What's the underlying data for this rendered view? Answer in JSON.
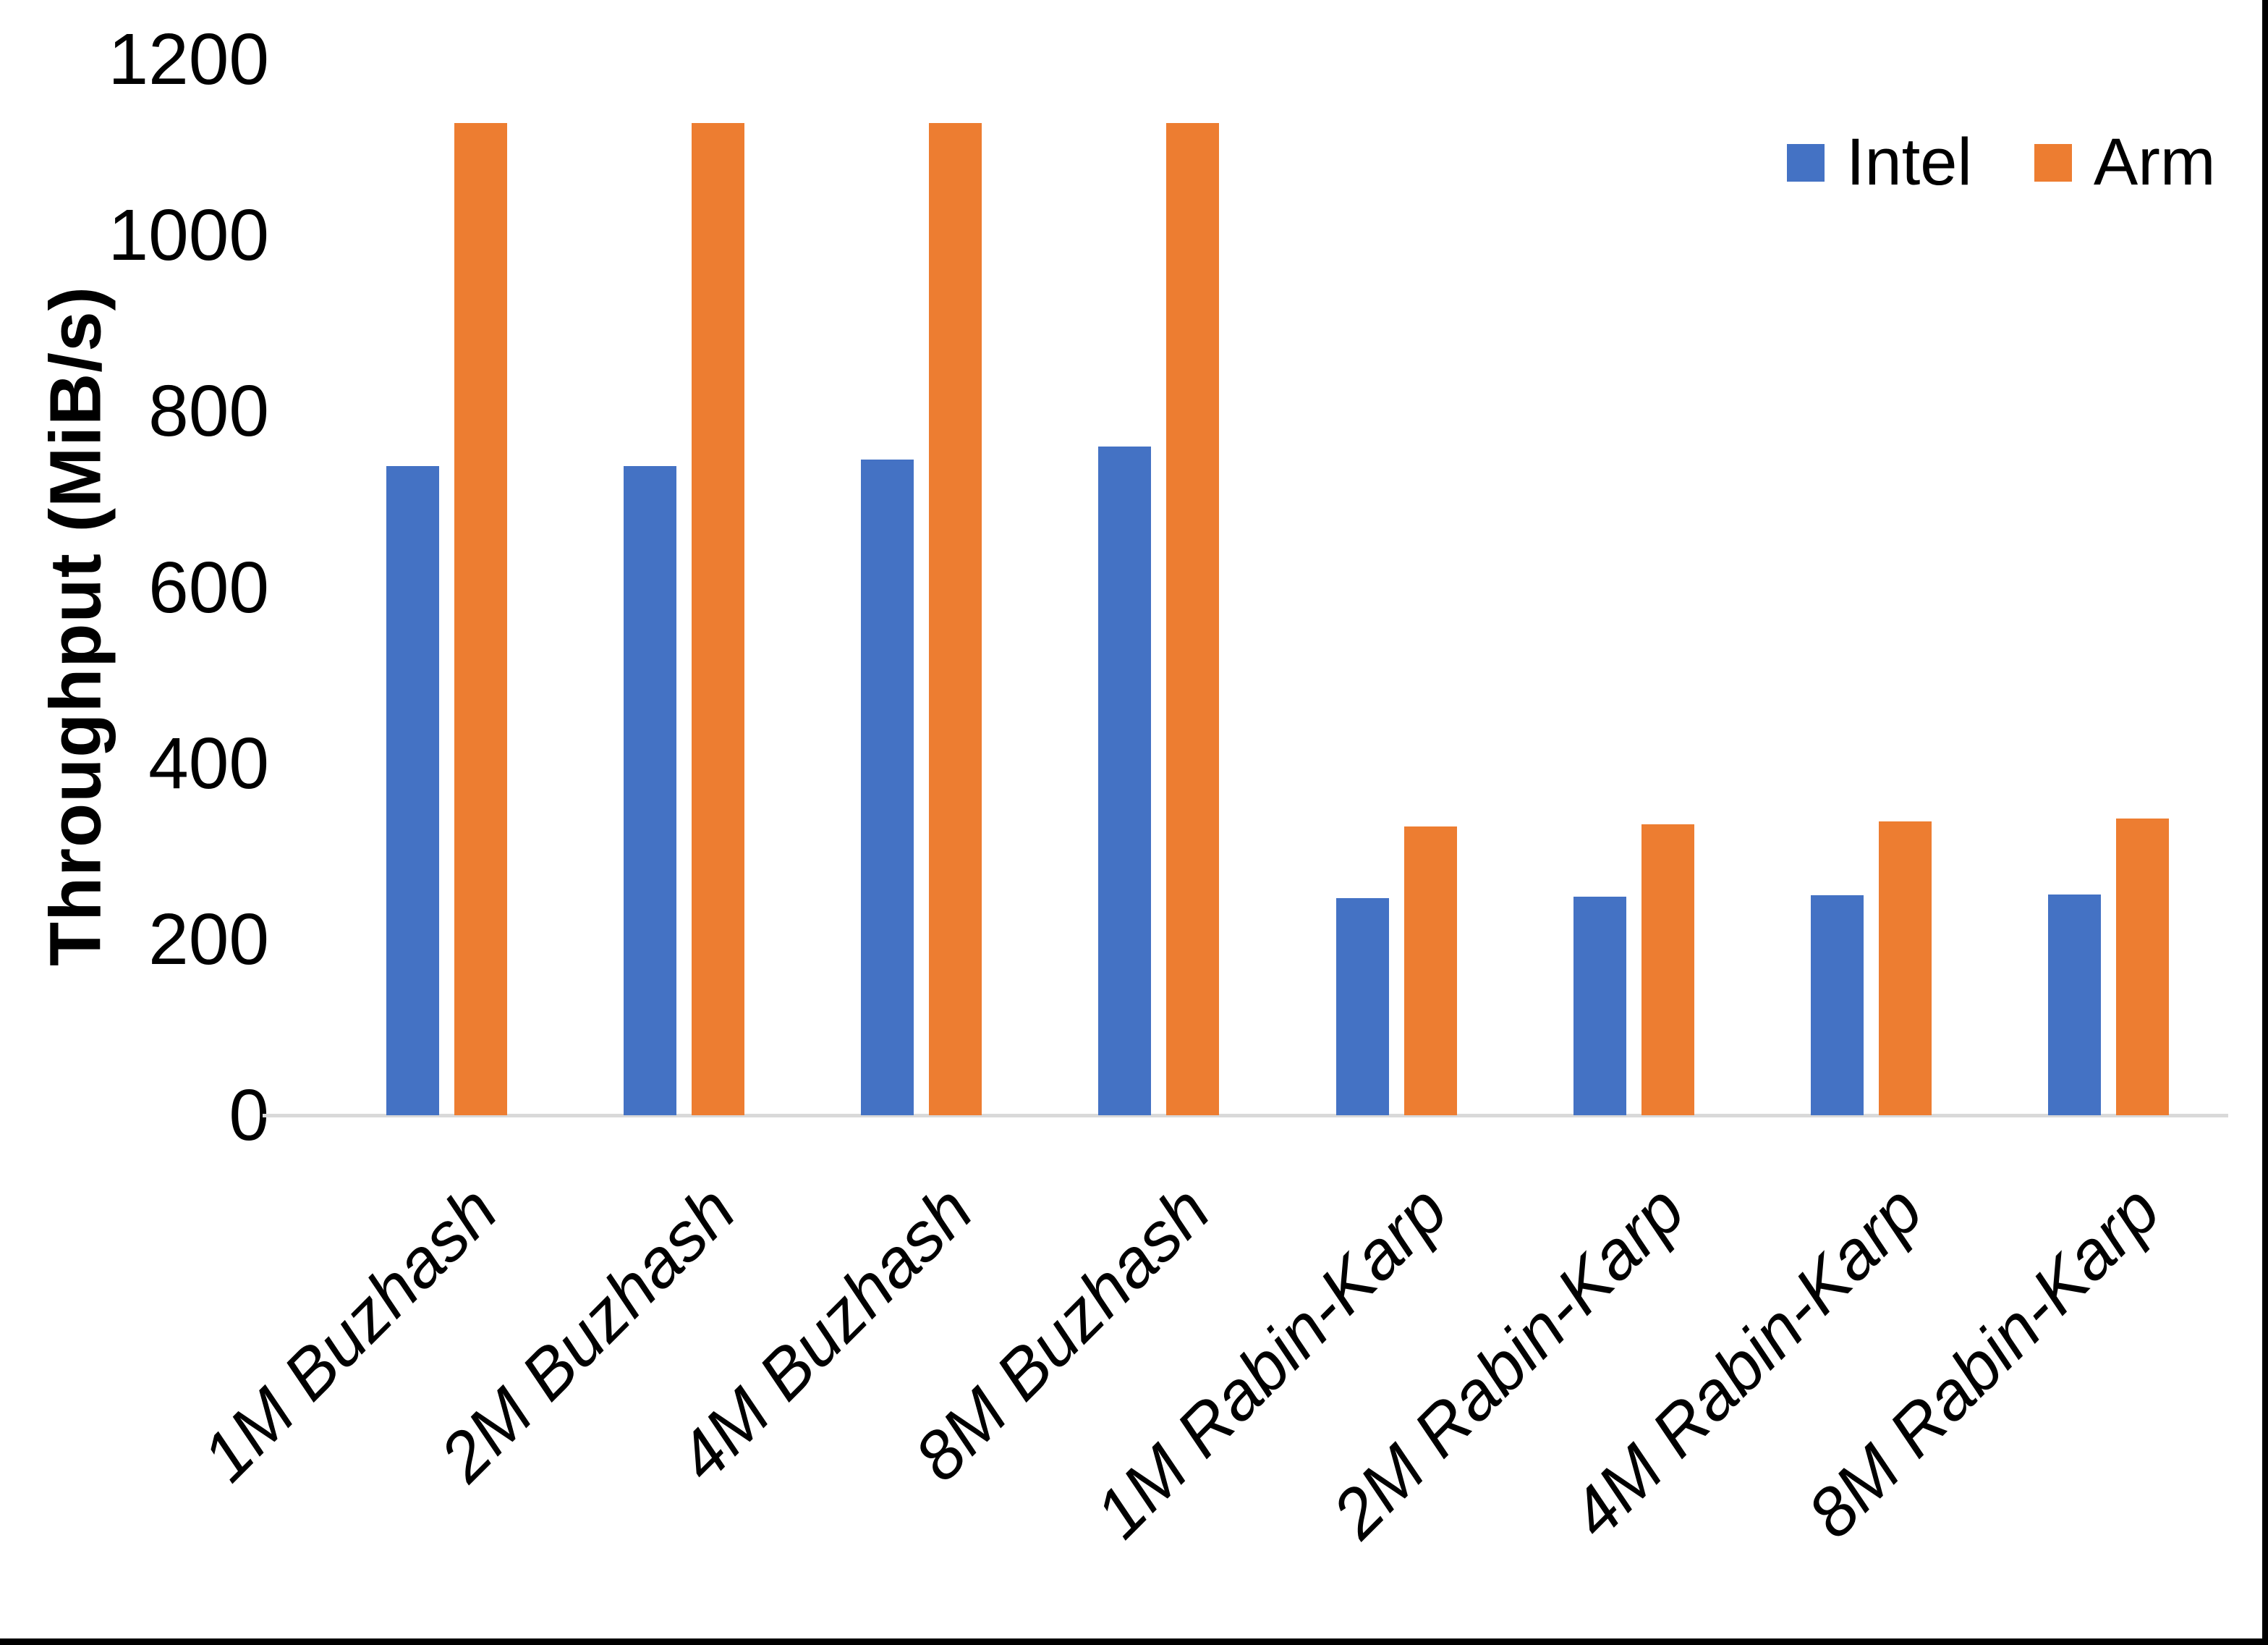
{
  "chart_data": {
    "type": "bar",
    "title": "",
    "xlabel": "",
    "ylabel": "Throughput (MiB/s)",
    "categories": [
      "1M Buzhash",
      "2M Buzhash",
      "4M Buzhash",
      "8M Buzhash",
      "1M Rabin-Karp",
      "2M Rabin-Karp",
      "4M Rabin-Karp",
      "8M Rabin-Karp"
    ],
    "series": [
      {
        "name": "Intel",
        "color": "#4472C4",
        "values": [
          738,
          738,
          745,
          760,
          247,
          248,
          250,
          251
        ]
      },
      {
        "name": "Arm",
        "color": "#ED7D31",
        "values": [
          1128,
          1128,
          1128,
          1128,
          328,
          331,
          334,
          337
        ]
      }
    ],
    "ylim": [
      0,
      1200
    ],
    "yticks": [
      0,
      200,
      400,
      600,
      800,
      1000,
      1200
    ],
    "grid": false,
    "legend_position": "top-right",
    "x_label_rotation_deg": 45,
    "x_label_style": "italic"
  },
  "legend": {
    "items": [
      {
        "label": "Intel",
        "color": "#4472C4"
      },
      {
        "label": "Arm",
        "color": "#ED7D31"
      }
    ]
  },
  "axis": {
    "y_title": "Throughput (MiB/s)"
  },
  "colors": {
    "background": "#FFFFFF",
    "axis_line": "#D9D9D9",
    "text": "#000000",
    "frame": "#000000"
  }
}
